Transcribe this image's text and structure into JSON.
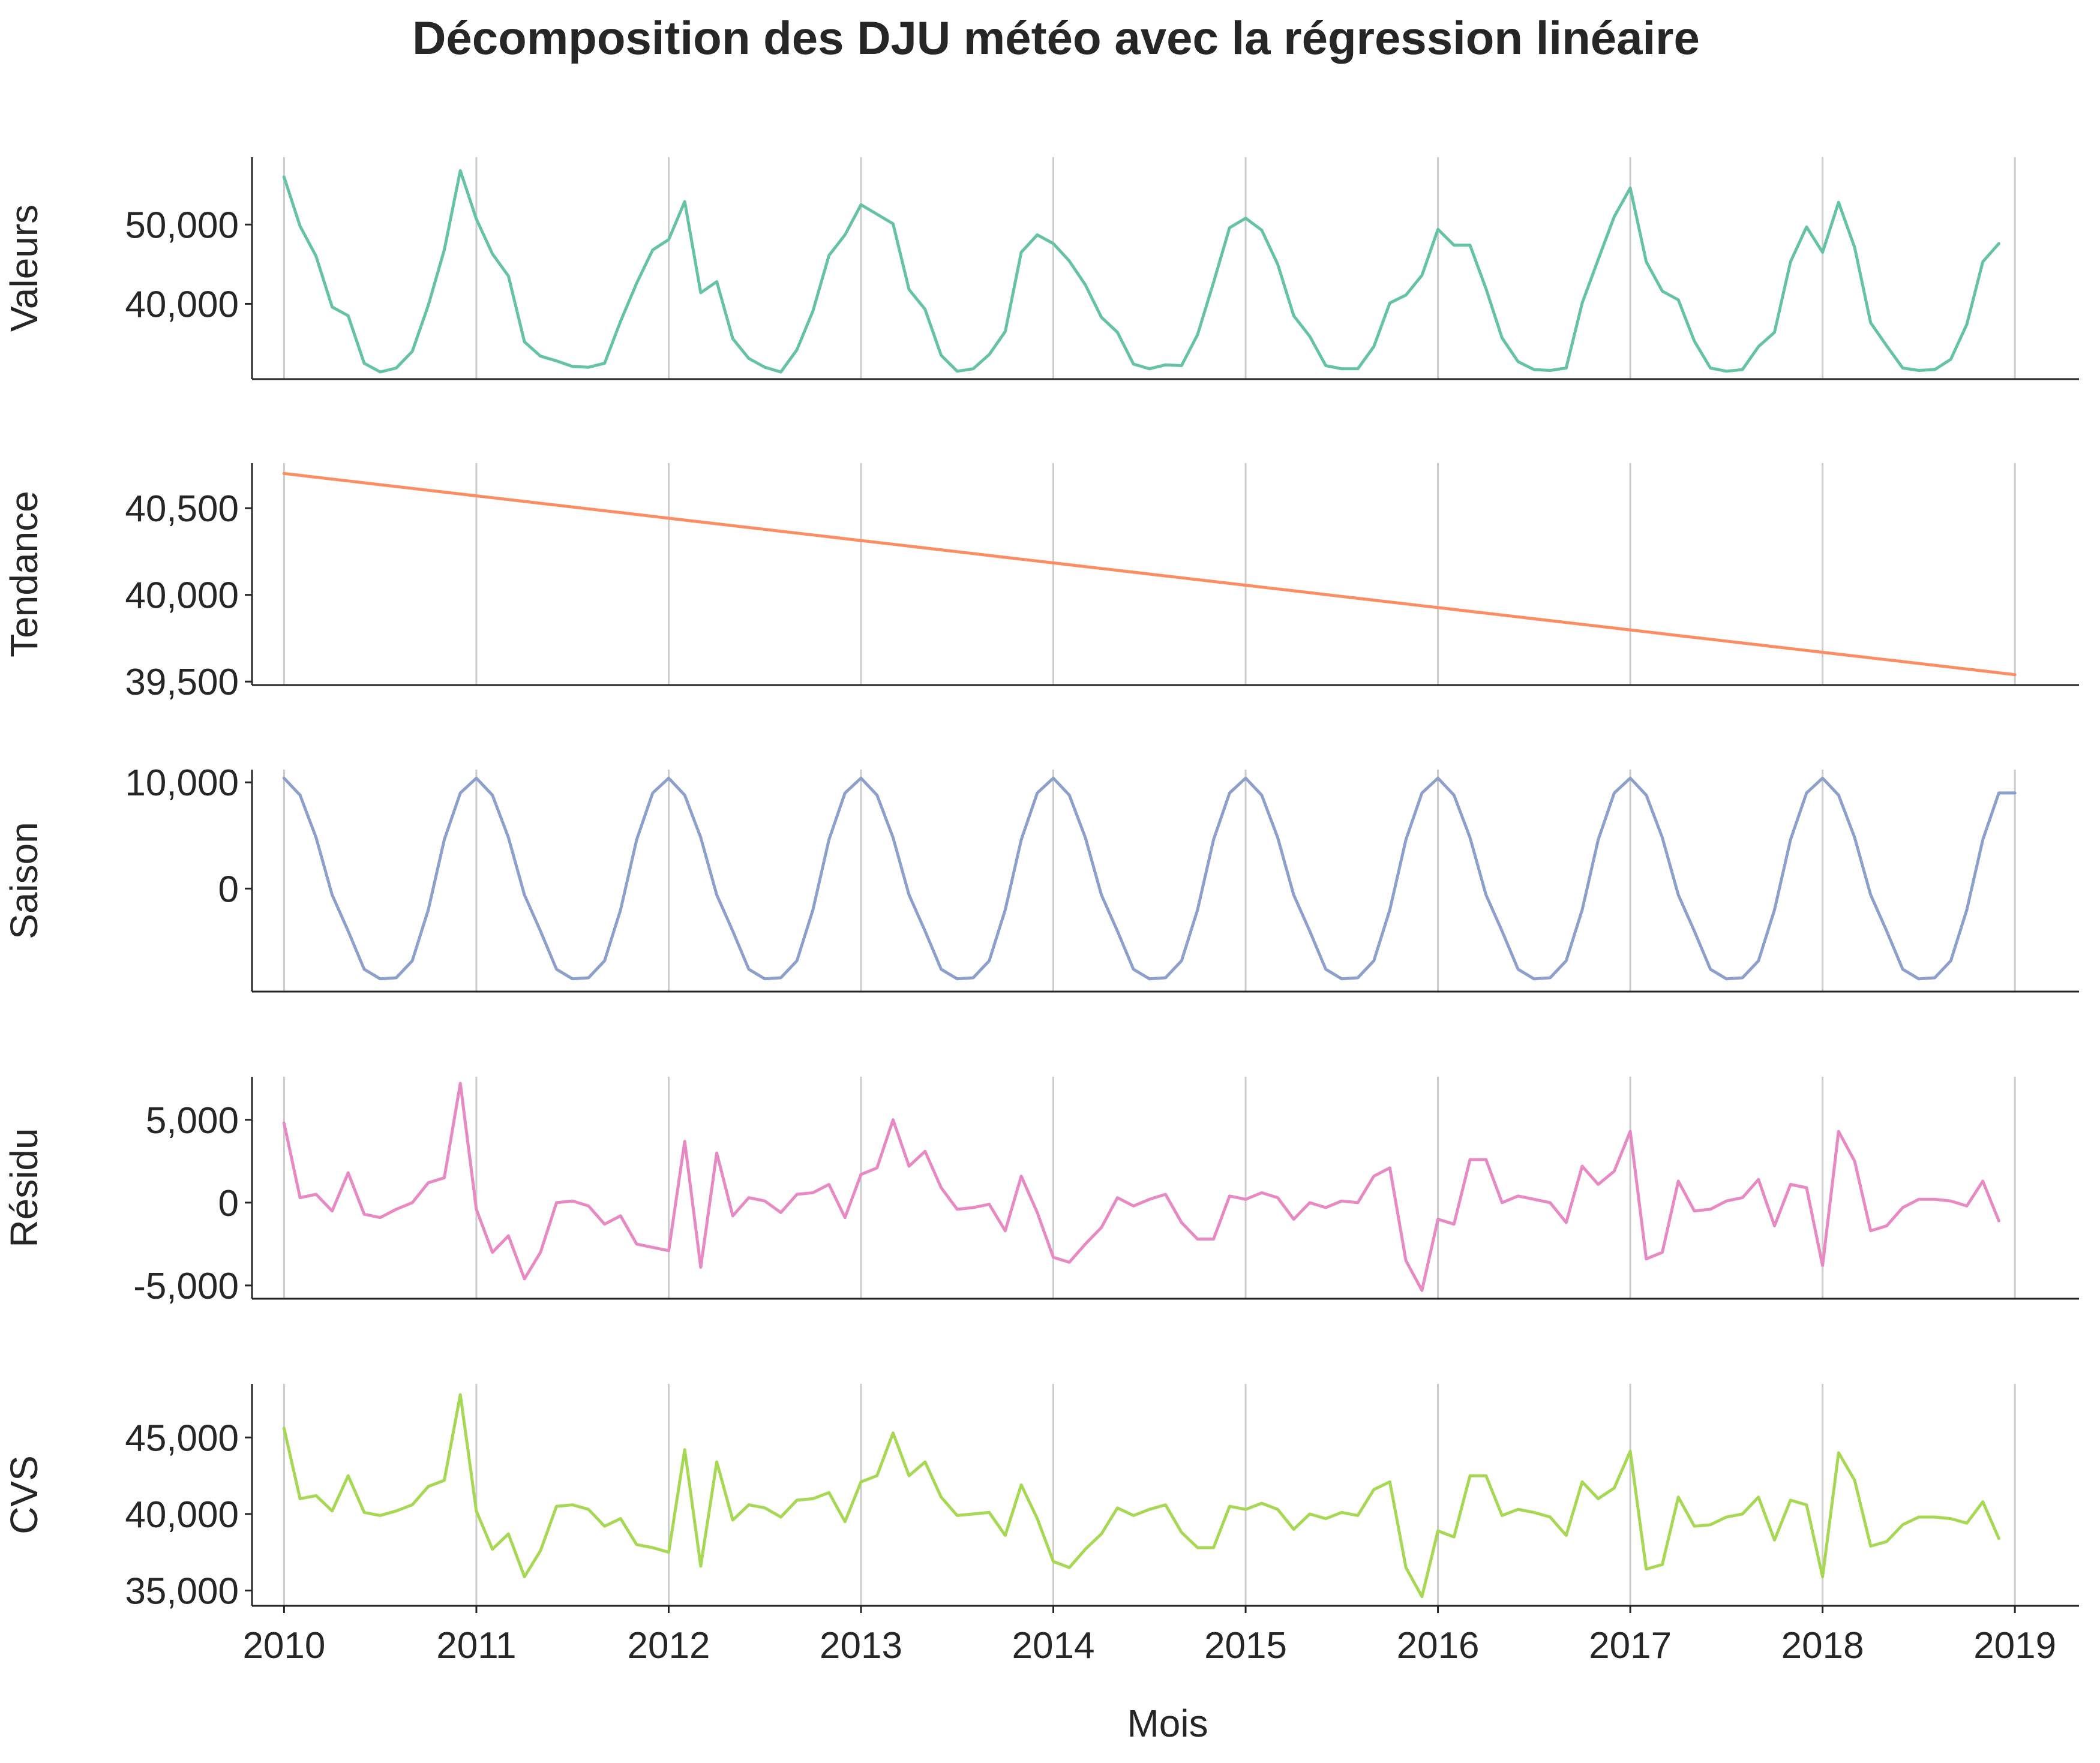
{
  "title": "Décomposition des DJU météo avec la régression linéaire",
  "xlabel": "Mois",
  "x_ticks": [
    "2010",
    "2011",
    "2012",
    "2013",
    "2014",
    "2015",
    "2016",
    "2017",
    "2018",
    "2019"
  ],
  "chart_data": [
    {
      "type": "line",
      "ylabel": "Valeurs",
      "color": "#66c2a5",
      "xlim": [
        "2009-11",
        "2019-05"
      ],
      "ylim": [
        30500,
        58500
      ],
      "y_ticks": [
        {
          "value": 40000,
          "label": "40,000"
        },
        {
          "value": 50000,
          "label": "50,000"
        }
      ],
      "x_start": "2010-01",
      "x_end": "2019-01",
      "values": [
        56000,
        49800,
        46000,
        39600,
        38500,
        32500,
        31400,
        31900,
        34000,
        39800,
        46800,
        56800,
        50700,
        46300,
        43500,
        35200,
        33400,
        32800,
        32100,
        32000,
        32500,
        37800,
        42600,
        46800,
        48100,
        52900,
        41400,
        42800,
        35600,
        33100,
        32000,
        31400,
        34200,
        39100,
        46100,
        48700,
        52500,
        51300,
        50100,
        41800,
        39300,
        33500,
        31500,
        31800,
        33600,
        36500,
        46500,
        48700,
        47600,
        45400,
        42400,
        38300,
        36400,
        32400,
        31800,
        32300,
        32200,
        36100,
        42700,
        49600,
        50800,
        49300,
        45000,
        38500,
        35900,
        32200,
        31800,
        31800,
        34600,
        40100,
        41100,
        43600,
        49400,
        47400,
        47400,
        41900,
        35700,
        32700,
        31700,
        31600,
        31900,
        40100,
        45600,
        51000,
        54600,
        45300,
        41600,
        40500,
        35300,
        31900,
        31500,
        31700,
        34600,
        36400,
        45300,
        49700,
        46500,
        52800,
        47100,
        37600,
        34700,
        31900,
        31600,
        31700,
        33000,
        37400,
        45300,
        47600
      ]
    },
    {
      "type": "line",
      "ylabel": "Tendance",
      "color": "#fc8d62",
      "xlim": [
        "2009-11",
        "2019-05"
      ],
      "ylim": [
        39480,
        40760
      ],
      "y_ticks": [
        {
          "value": 39500,
          "label": "39,500"
        },
        {
          "value": 40000,
          "label": "40,000"
        },
        {
          "value": 40500,
          "label": "40,500"
        }
      ],
      "x_start": "2010-01",
      "x_end": "2019-01",
      "values_linear": [
        40700,
        39540
      ]
    },
    {
      "type": "line",
      "ylabel": "Saison",
      "color": "#8da0cb",
      "xlim": [
        "2009-11",
        "2019-05"
      ],
      "ylim": [
        -9700,
        11200
      ],
      "y_ticks": [
        {
          "value": 0,
          "label": "0"
        },
        {
          "value": 10000,
          "label": "10,000"
        }
      ],
      "x_start": "2010-01",
      "x_end": "2019-01",
      "season_pattern": [
        10400,
        8800,
        4800,
        -600,
        -4000,
        -7600,
        -8500,
        -8400,
        -6800,
        -2000,
        4600,
        9000
      ],
      "periods": 9,
      "last_value": 9000
    },
    {
      "type": "line",
      "ylabel": "Résidu",
      "color": "#e78ac3",
      "xlim": [
        "2009-11",
        "2019-05"
      ],
      "ylim": [
        -5800,
        7600
      ],
      "y_ticks": [
        {
          "value": -5000,
          "label": "-5,000"
        },
        {
          "value": 0,
          "label": "0"
        },
        {
          "value": 5000,
          "label": "5,000"
        }
      ],
      "x_start": "2010-01",
      "x_end": "2019-01",
      "values": [
        4800,
        300,
        500,
        -500,
        1800,
        -700,
        -900,
        -400,
        0,
        1200,
        1500,
        7200,
        -400,
        -3000,
        -2000,
        -4600,
        -3000,
        0,
        100,
        -200,
        -1300,
        -800,
        -2500,
        -2700,
        -2900,
        3700,
        -3900,
        3000,
        -800,
        300,
        100,
        -600,
        500,
        600,
        1100,
        -900,
        1700,
        2100,
        5000,
        2200,
        3100,
        900,
        -400,
        -300,
        -100,
        -1700,
        1600,
        -600,
        -3300,
        -3600,
        -2500,
        -1500,
        300,
        -200,
        200,
        500,
        -1200,
        -2200,
        -2200,
        400,
        200,
        600,
        300,
        -1000,
        0,
        -300,
        100,
        0,
        1600,
        2100,
        -3500,
        -5300,
        -1000,
        -1300,
        2600,
        2600,
        0,
        400,
        200,
        0,
        -1200,
        2200,
        1100,
        1900,
        4300,
        -3400,
        -3000,
        1300,
        -500,
        -400,
        100,
        300,
        1400,
        -1400,
        1100,
        900,
        -3800,
        4300,
        2500,
        -1700,
        -1400,
        -300,
        200,
        200,
        100,
        -200,
        1300,
        -1100
      ]
    },
    {
      "type": "line",
      "ylabel": "CVS",
      "color": "#a6d854",
      "xlim": [
        "2009-11",
        "2019-05"
      ],
      "ylim": [
        34000,
        48500
      ],
      "y_ticks": [
        {
          "value": 35000,
          "label": "35,000"
        },
        {
          "value": 40000,
          "label": "40,000"
        },
        {
          "value": 45000,
          "label": "45,000"
        }
      ],
      "x_start": "2010-01",
      "x_end": "2019-01",
      "values": [
        45600,
        41000,
        41200,
        40200,
        42500,
        40100,
        39900,
        40200,
        40600,
        41800,
        42200,
        47800,
        40200,
        37700,
        38700,
        35900,
        37600,
        40500,
        40600,
        40300,
        39200,
        39700,
        38000,
        37800,
        37500,
        44200,
        36600,
        43400,
        39600,
        40600,
        40400,
        39800,
        40900,
        41000,
        41400,
        39500,
        42100,
        42500,
        45300,
        42500,
        43400,
        41100,
        39900,
        40000,
        40100,
        38600,
        41900,
        39700,
        36900,
        36500,
        37700,
        38700,
        40400,
        39900,
        40300,
        40600,
        38800,
        37800,
        37800,
        40500,
        40300,
        40700,
        40300,
        39000,
        40000,
        39700,
        40100,
        39900,
        41600,
        42100,
        36500,
        34600,
        38900,
        38500,
        42500,
        42500,
        39900,
        40300,
        40100,
        39800,
        38600,
        42100,
        41000,
        41700,
        44100,
        36400,
        36700,
        41100,
        39200,
        39300,
        39800,
        40000,
        41100,
        38300,
        40900,
        40600,
        35900,
        44000,
        42200,
        37900,
        38200,
        39300,
        39800,
        39800,
        39700,
        39400,
        40800,
        38400
      ]
    }
  ]
}
